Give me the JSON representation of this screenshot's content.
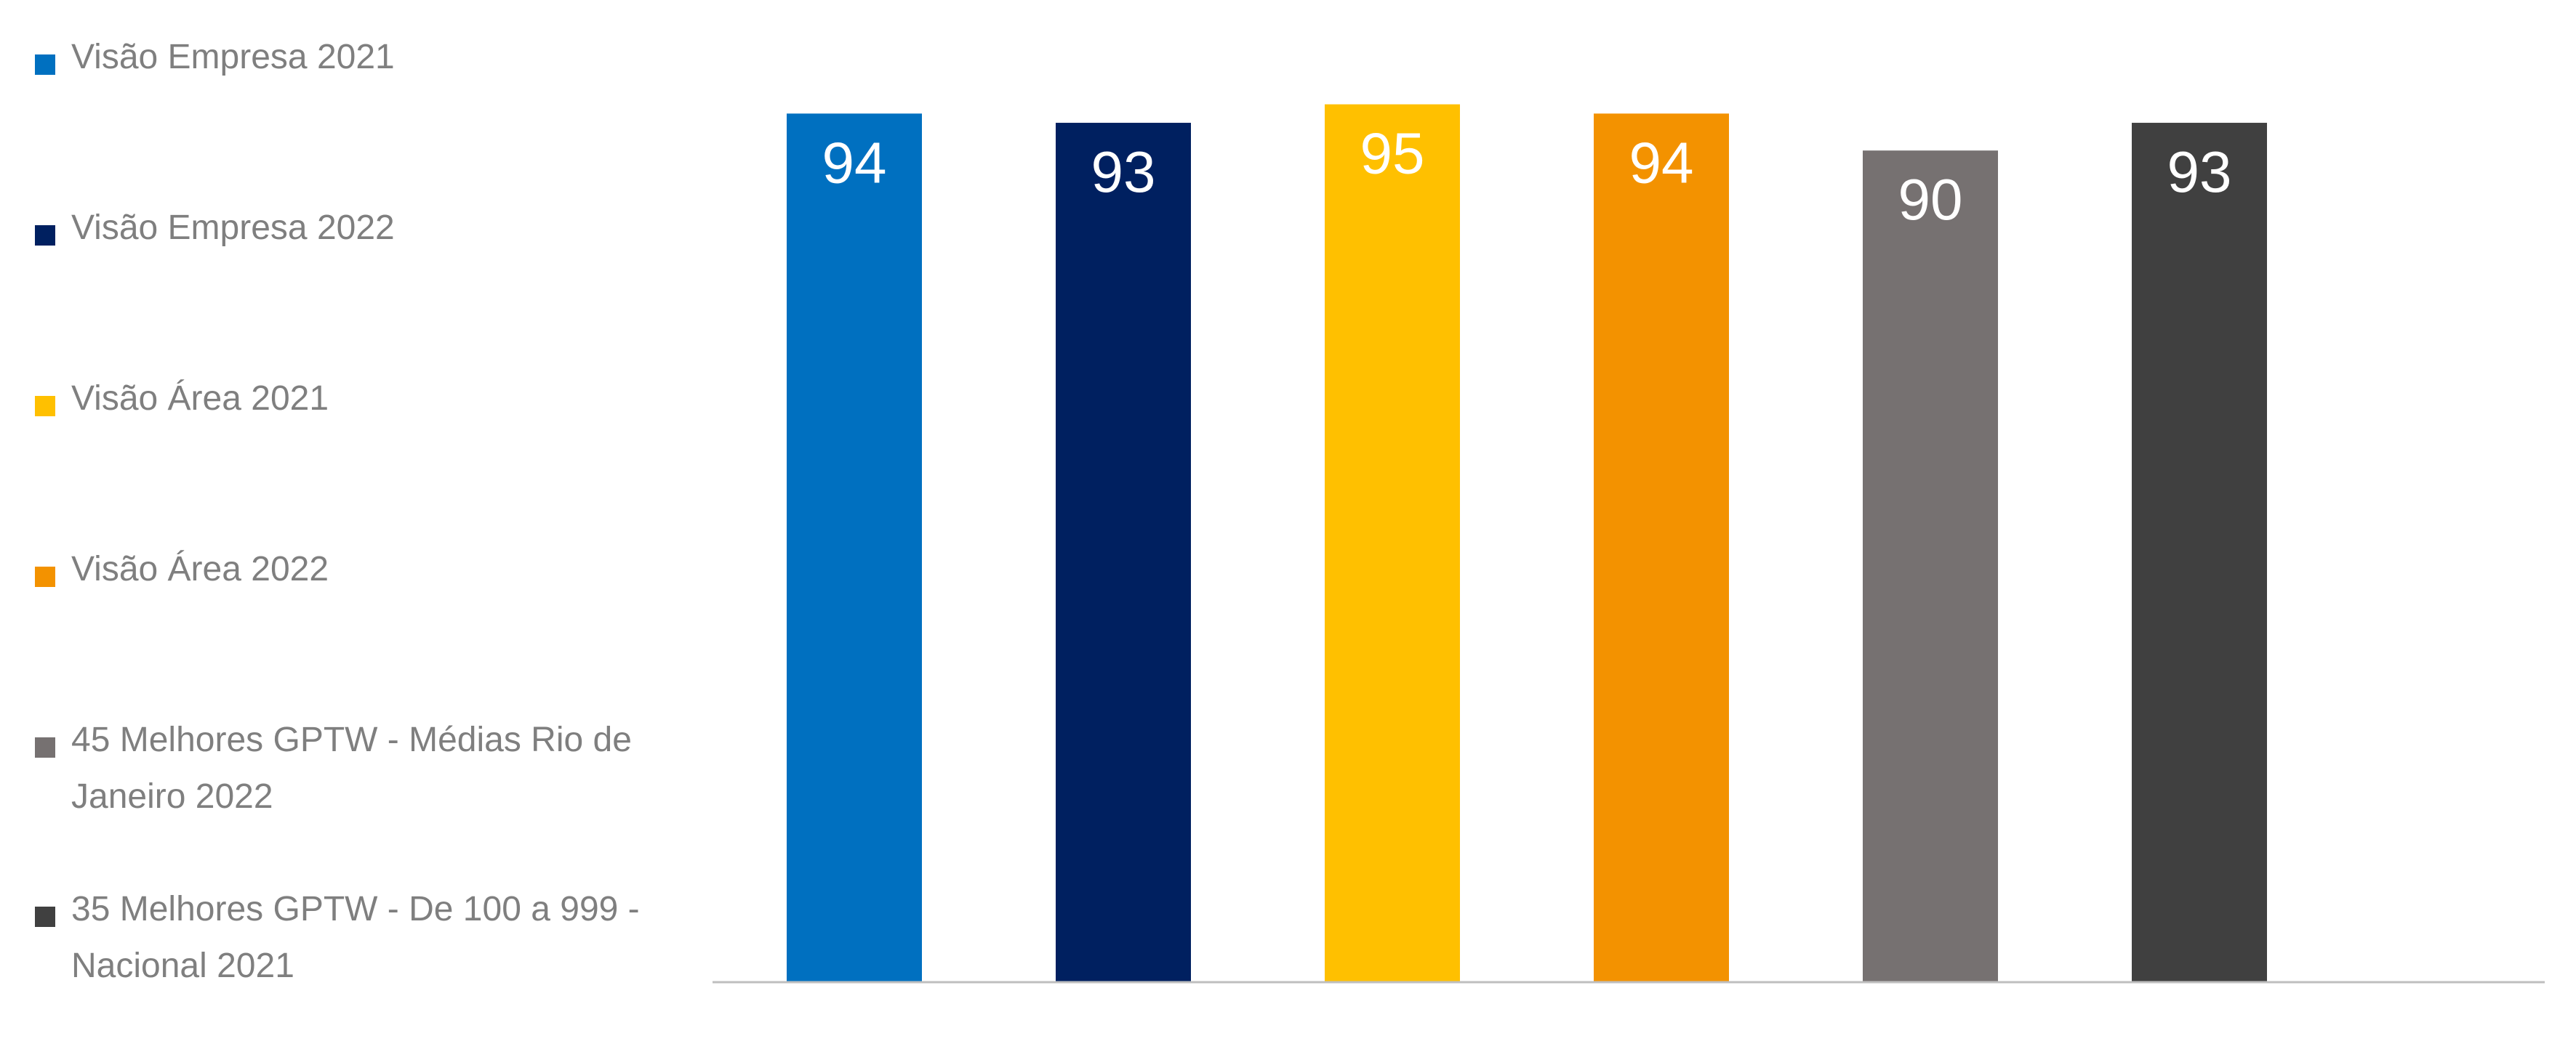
{
  "chart_data": {
    "type": "bar",
    "categories": [
      "Visão Empresa 2021",
      "Visão Empresa 2022",
      "Visão Área 2021",
      "Visão Área 2022",
      "45 Melhores GPTW -  Médias Rio de Janeiro 2022",
      "35 Melhores GPTW - De 100 a 999 - Nacional 2021"
    ],
    "values": [
      94,
      93,
      95,
      94,
      90,
      93
    ],
    "colors": [
      "#0070c0",
      "#002060",
      "#ffc000",
      "#f39200",
      "#767171",
      "#404040"
    ],
    "ylim": [
      0,
      100
    ],
    "grid": false,
    "legend_position": "left"
  },
  "legend": {
    "items": [
      {
        "label": "Visão Empresa 2021",
        "color": "#0070c0"
      },
      {
        "label": "Visão Empresa 2022",
        "color": "#002060"
      },
      {
        "label": "Visão Área 2021",
        "color": "#ffc000"
      },
      {
        "label": "Visão Área 2022",
        "color": "#f39200"
      },
      {
        "label": "45 Melhores GPTW -  Médias Rio de Janeiro 2022",
        "color": "#767171"
      },
      {
        "label": "35 Melhores GPTW - De 100 a 999 - Nacional 2021",
        "color": "#404040"
      }
    ]
  }
}
